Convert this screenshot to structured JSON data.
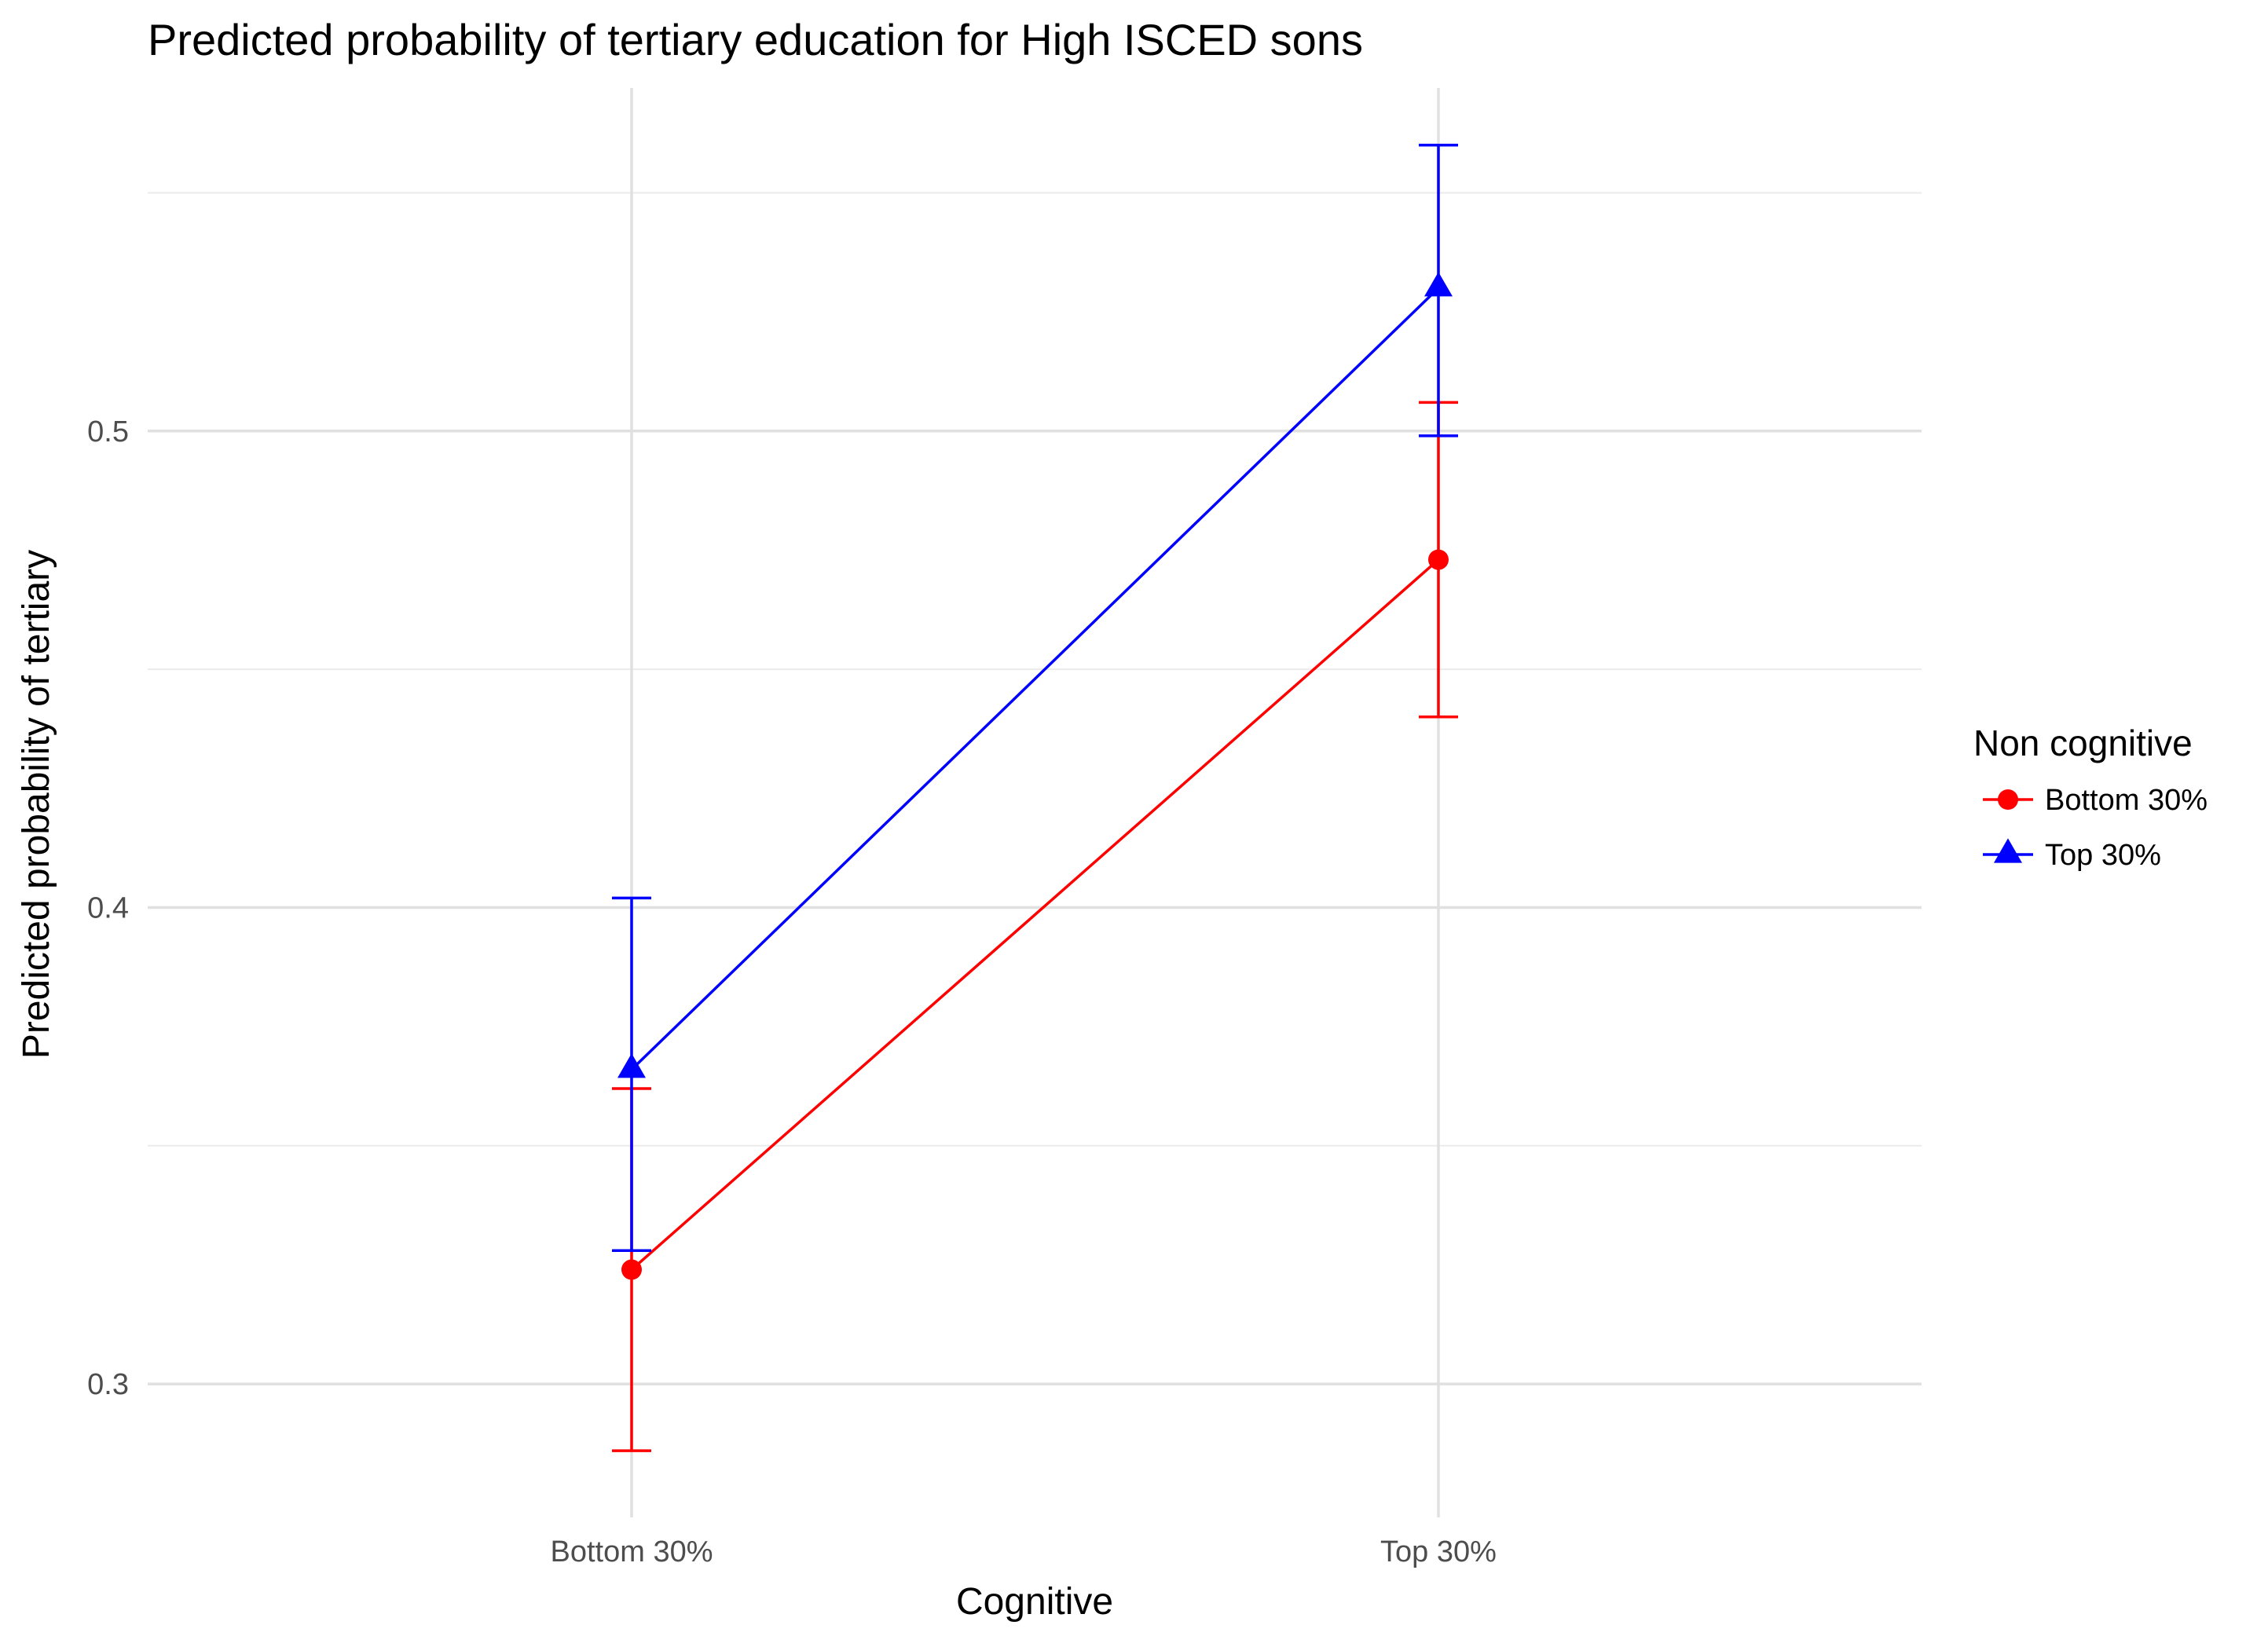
{
  "chart_data": {
    "type": "line",
    "title": "Predicted probability of tertiary education for High ISCED sons",
    "xlabel": "Cognitive",
    "ylabel": "Predicted probability of tertiary",
    "categories": [
      "Bottom 30%",
      "Top 30%"
    ],
    "ylim": [
      0.272,
      0.572
    ],
    "yticks": [
      0.3,
      0.4,
      0.5
    ],
    "ytick_labels": [
      "0.3",
      "0.4",
      "0.5"
    ],
    "minor_yticks": [
      0.35,
      0.45,
      0.55
    ],
    "grid": true,
    "legend": {
      "title": "Non cognitive",
      "position": "right"
    },
    "series": [
      {
        "name": "Bottom 30%",
        "color": "#ff0000",
        "marker": "circle",
        "values": [
          0.324,
          0.473
        ],
        "lower": [
          0.286,
          0.44
        ],
        "upper": [
          0.362,
          0.506
        ]
      },
      {
        "name": "Top 30%",
        "color": "#0000ff",
        "marker": "triangle",
        "values": [
          0.366,
          0.53
        ],
        "lower": [
          0.328,
          0.499
        ],
        "upper": [
          0.402,
          0.56
        ]
      }
    ]
  }
}
